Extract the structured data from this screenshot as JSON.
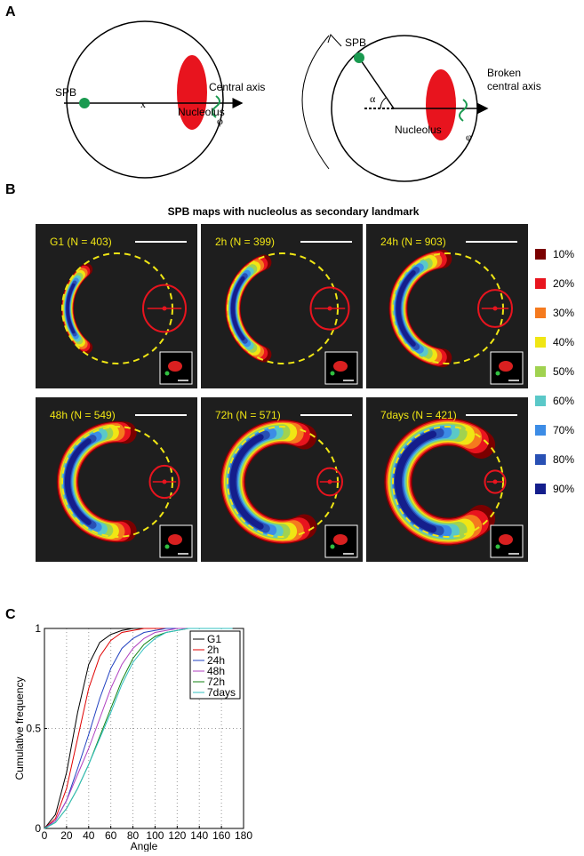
{
  "panel_labels": [
    "A",
    "B",
    "C"
  ],
  "diagram": {
    "left": {
      "spb": "SPB",
      "center": "x",
      "axis": "Central axis",
      "nucleolus": "Nucleolus",
      "rotation": "φ"
    },
    "right": {
      "spb": "SPB",
      "angle": "α",
      "axis_line1": "Broken",
      "axis_line2": "central axis",
      "nucleolus": "Nucleolus",
      "rotation": "φ"
    }
  },
  "maps": {
    "title": "SPB maps with nucleolus as secondary landmark",
    "panels": [
      "G1 (N = 403)",
      "2h (N = 399)",
      "24h (N = 903)",
      "48h (N = 549)",
      "72h (N = 571)",
      "7days (N = 421)"
    ],
    "legend": [
      {
        "label": "10%",
        "color": "#7a0000"
      },
      {
        "label": "20%",
        "color": "#e8141e"
      },
      {
        "label": "30%",
        "color": "#f57a1e"
      },
      {
        "label": "40%",
        "color": "#f0e614"
      },
      {
        "label": "50%",
        "color": "#a0d250"
      },
      {
        "label": "60%",
        "color": "#5ac8c8"
      },
      {
        "label": "70%",
        "color": "#3c8ce6"
      },
      {
        "label": "80%",
        "color": "#2850b4"
      },
      {
        "label": "90%",
        "color": "#141e8c"
      }
    ]
  },
  "chart_data": {
    "type": "line",
    "xlabel": "Angle",
    "ylabel": "Cumulative frequency",
    "x": [
      0,
      10,
      20,
      30,
      40,
      50,
      60,
      70,
      80,
      90,
      100,
      110,
      120,
      130,
      140,
      150,
      160,
      170
    ],
    "series": [
      {
        "name": "G1",
        "color": "#000000",
        "values": [
          0,
          0.07,
          0.28,
          0.58,
          0.82,
          0.93,
          0.97,
          0.99,
          1,
          1,
          1,
          1,
          1,
          1,
          1,
          1,
          1,
          1
        ]
      },
      {
        "name": "2h",
        "color": "#e00000",
        "values": [
          0,
          0.05,
          0.2,
          0.45,
          0.7,
          0.86,
          0.94,
          0.98,
          0.99,
          1,
          1,
          1,
          1,
          1,
          1,
          1,
          1,
          1
        ]
      },
      {
        "name": "24h",
        "color": "#2040c0",
        "values": [
          0,
          0.04,
          0.14,
          0.3,
          0.47,
          0.65,
          0.8,
          0.9,
          0.95,
          0.98,
          0.99,
          1,
          1,
          1,
          1,
          1,
          1,
          1
        ]
      },
      {
        "name": "48h",
        "color": "#b040c0",
        "values": [
          0,
          0.04,
          0.14,
          0.27,
          0.4,
          0.55,
          0.7,
          0.82,
          0.9,
          0.95,
          0.98,
          0.99,
          1,
          1,
          1,
          1,
          1,
          1
        ]
      },
      {
        "name": "72h",
        "color": "#108010",
        "values": [
          0,
          0.03,
          0.1,
          0.2,
          0.32,
          0.46,
          0.6,
          0.74,
          0.85,
          0.92,
          0.96,
          0.98,
          0.99,
          1,
          1,
          1,
          1,
          1
        ]
      },
      {
        "name": "7days",
        "color": "#30c0c0",
        "values": [
          0,
          0.03,
          0.1,
          0.2,
          0.32,
          0.45,
          0.58,
          0.72,
          0.83,
          0.9,
          0.95,
          0.98,
          0.99,
          1,
          1,
          1,
          1,
          1
        ]
      }
    ],
    "xlim": [
      0,
      180
    ],
    "xticks": [
      0,
      20,
      40,
      60,
      80,
      100,
      120,
      140,
      160,
      180
    ],
    "ylim": [
      0,
      1
    ],
    "yticks": [
      0,
      0.5,
      1
    ],
    "grid": true,
    "legend": "upper right"
  }
}
